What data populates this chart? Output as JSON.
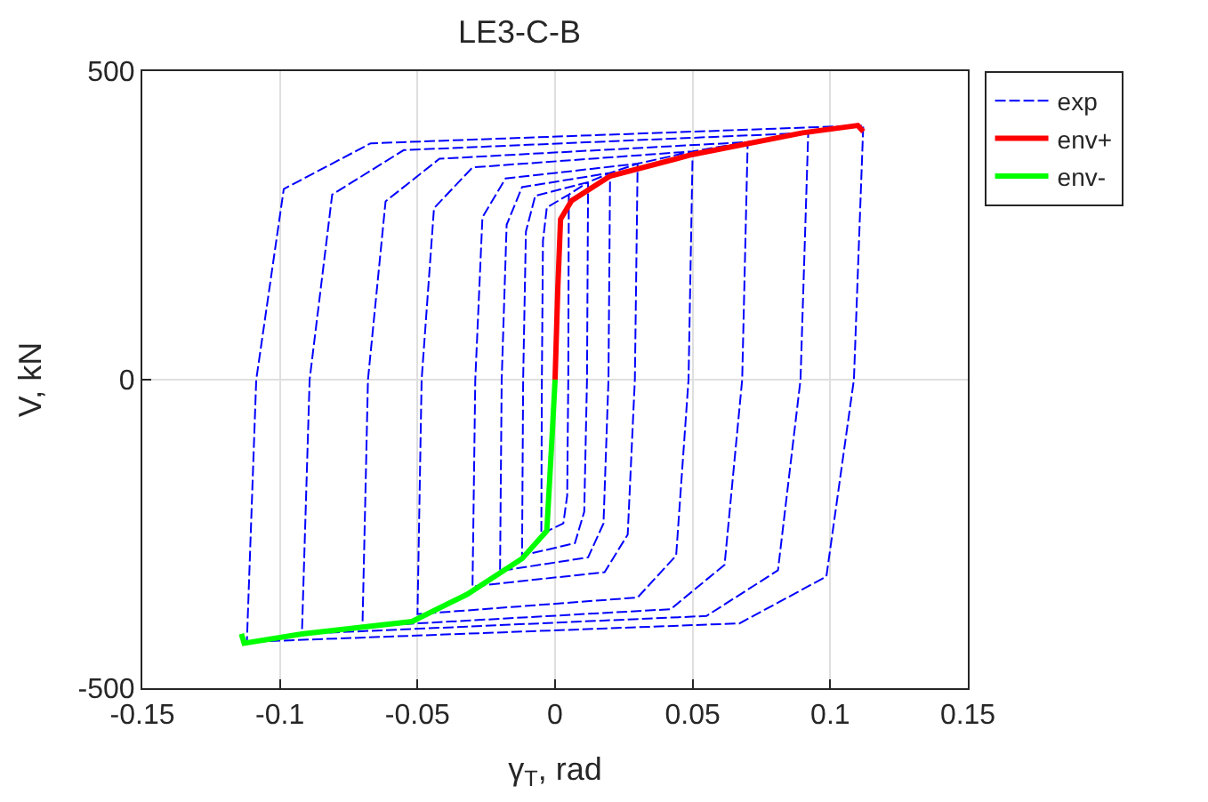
{
  "chart_data": {
    "type": "line",
    "title": "LE3-C-B",
    "xlabel": "γ$_{T}$, rad",
    "ylabel": "V, kN",
    "xlim": [
      -0.15,
      0.15
    ],
    "xticks": [
      -0.15,
      -0.1,
      -0.05,
      0,
      0.05,
      0.1,
      0.15
    ],
    "ylim": [
      -500,
      500
    ],
    "yticks": [
      -500,
      0,
      500
    ],
    "grid": true,
    "legend": "top right",
    "marker": "none",
    "series": [
      {
        "name": "exp",
        "color": "#0000ff",
        "line_style": "dashed",
        "x": [
          0.005,
          0.0048,
          0.0044,
          0.003,
          -0.005,
          -0.0048,
          -0.0044,
          -0.003,
          0.005,
          0.012,
          0.0116,
          0.0106,
          0.0072,
          -0.012,
          -0.0116,
          -0.0106,
          -0.0072,
          0.012,
          0.02,
          0.0194,
          0.0176,
          0.012,
          -0.02,
          -0.0194,
          -0.0176,
          -0.012,
          0.02,
          0.03,
          0.029,
          0.0264,
          0.018,
          -0.03,
          -0.029,
          -0.0264,
          -0.018,
          0.03,
          0.05,
          0.0485,
          0.044,
          0.03,
          -0.05,
          -0.0485,
          -0.044,
          -0.03,
          0.05,
          0.07,
          0.068,
          0.0616,
          0.042,
          -0.07,
          -0.068,
          -0.0616,
          -0.042,
          0.07,
          0.092,
          0.0892,
          0.081,
          0.055,
          -0.092,
          -0.0892,
          -0.081,
          -0.055,
          0.092,
          0.112,
          0.1086,
          0.0986,
          0.067,
          -0.112,
          -0.1086,
          -0.0986,
          -0.067,
          0.112
        ],
        "values": [
          300,
          0,
          -188,
          -233,
          -250,
          0,
          225,
          279,
          300,
          320,
          0,
          -214,
          -265,
          -285,
          0,
          240,
          298,
          320,
          335,
          0,
          -233,
          -288,
          -310,
          0,
          251,
          312,
          335,
          350,
          0,
          -251,
          -312,
          -335,
          0,
          263,
          326,
          350,
          370,
          0,
          -285,
          -353,
          -380,
          0,
          278,
          344,
          370,
          385,
          0,
          -300,
          -372,
          -400,
          0,
          289,
          358,
          385,
          400,
          0,
          -309,
          -383,
          -412,
          0,
          300,
          372,
          400,
          412,
          0,
          -319,
          -395,
          -425,
          0,
          309,
          383,
          412
        ]
      },
      {
        "name": "env+",
        "color": "#ff0000",
        "line_style": "solid",
        "x": [
          0,
          0.001,
          0.002,
          0.006,
          0.02,
          0.05,
          0.09,
          0.11,
          0.112
        ],
        "values": [
          0,
          150,
          260,
          290,
          330,
          365,
          400,
          412,
          402
        ]
      },
      {
        "name": "env-",
        "color": "#00ff00",
        "line_style": "solid",
        "x": [
          0,
          -0.001,
          -0.003,
          -0.012,
          -0.032,
          -0.052,
          -0.092,
          -0.113,
          -0.114
        ],
        "values": [
          0,
          -85,
          -245,
          -290,
          -348,
          -392,
          -412,
          -427,
          -412
        ]
      }
    ]
  }
}
